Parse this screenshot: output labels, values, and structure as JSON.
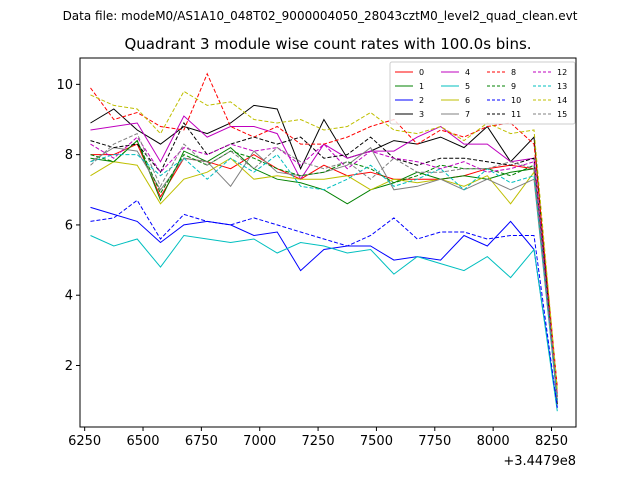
{
  "header": {
    "data_file_label": "Data file: modeM0/AS1A10_048T02_9000004050_28043cztM0_level2_quad_clean.evt"
  },
  "chart_data": {
    "type": "line",
    "title": "Quadrant 3 module wise count rates with 100.0s bins.",
    "xlabel": "",
    "ylabel": "",
    "x_offset_label": "+3.4479e8",
    "xlim": [
      6230,
      8355
    ],
    "ylim": [
      0.25,
      10.75
    ],
    "x_ticks": [
      6250,
      6500,
      6750,
      7000,
      7250,
      7500,
      7750,
      8000,
      8250
    ],
    "y_ticks": [
      2,
      4,
      6,
      8,
      10
    ],
    "grid": false,
    "legend": {
      "placement": "top-right",
      "columns": 4
    },
    "x": [
      6275,
      6375,
      6475,
      6575,
      6675,
      6775,
      6875,
      6975,
      7075,
      7175,
      7275,
      7375,
      7475,
      7575,
      7675,
      7775,
      7875,
      7975,
      8075,
      8175,
      8275
    ],
    "series": [
      {
        "name": "0",
        "color": "#ff0000",
        "dash": false,
        "values": [
          8.0,
          8.0,
          8.3,
          6.8,
          7.9,
          7.8,
          7.6,
          8.0,
          7.6,
          7.3,
          7.7,
          7.4,
          7.5,
          7.3,
          7.3,
          7.3,
          7.4,
          7.6,
          7.7,
          7.6,
          1.2
        ]
      },
      {
        "name": "1",
        "color": "#008000",
        "dash": false,
        "values": [
          7.9,
          7.8,
          8.4,
          6.7,
          8.1,
          7.8,
          8.2,
          7.6,
          7.3,
          7.2,
          7.0,
          6.6,
          7.0,
          7.2,
          7.5,
          7.3,
          7.4,
          7.3,
          7.5,
          7.6,
          1.0
        ]
      },
      {
        "name": "2",
        "color": "#0000ff",
        "dash": false,
        "values": [
          6.5,
          6.3,
          6.1,
          5.5,
          6.0,
          6.1,
          6.0,
          5.7,
          5.8,
          4.7,
          5.3,
          5.4,
          5.4,
          5.0,
          5.1,
          5.0,
          5.7,
          5.4,
          6.1,
          5.3,
          0.8
        ]
      },
      {
        "name": "3",
        "color": "#000000",
        "dash": false,
        "values": [
          8.9,
          9.3,
          8.7,
          8.3,
          8.8,
          8.6,
          8.9,
          9.4,
          9.3,
          7.6,
          9.0,
          7.9,
          8.1,
          8.4,
          8.3,
          8.5,
          8.2,
          8.8,
          7.8,
          8.5,
          0.9
        ]
      },
      {
        "name": "4",
        "color": "#bf00bf",
        "dash": false,
        "values": [
          8.7,
          8.8,
          8.9,
          7.8,
          9.1,
          8.5,
          8.8,
          8.8,
          8.6,
          7.3,
          8.3,
          7.9,
          8.1,
          8.1,
          8.5,
          8.8,
          8.3,
          8.3,
          7.8,
          7.9,
          1.0
        ]
      },
      {
        "name": "5",
        "color": "#00bfbf",
        "dash": false,
        "values": [
          5.7,
          5.4,
          5.6,
          4.8,
          5.7,
          5.6,
          5.5,
          5.6,
          5.2,
          5.5,
          5.4,
          5.2,
          5.3,
          4.6,
          5.1,
          4.9,
          4.7,
          5.1,
          4.5,
          5.3,
          0.7
        ]
      },
      {
        "name": "6",
        "color": "#bfbf00",
        "dash": false,
        "values": [
          7.4,
          7.8,
          7.7,
          6.6,
          7.3,
          7.5,
          7.9,
          7.3,
          7.4,
          7.3,
          7.3,
          7.4,
          7.0,
          7.3,
          7.2,
          7.3,
          7.1,
          7.4,
          6.6,
          7.5,
          1.1
        ]
      },
      {
        "name": "7",
        "color": "#808080",
        "dash": false,
        "values": [
          7.8,
          8.2,
          8.1,
          7.0,
          7.9,
          7.8,
          7.1,
          8.1,
          7.5,
          7.4,
          7.5,
          7.7,
          8.2,
          7.0,
          7.1,
          7.3,
          7.0,
          7.3,
          7.0,
          7.3,
          1.0
        ]
      },
      {
        "name": "8",
        "color": "#ff0000",
        "dash": true,
        "values": [
          9.9,
          9.0,
          9.2,
          8.8,
          8.7,
          10.3,
          8.8,
          8.5,
          8.8,
          8.3,
          8.3,
          8.5,
          8.8,
          9.0,
          8.3,
          8.7,
          8.5,
          8.8,
          8.9,
          8.3,
          1.4
        ]
      },
      {
        "name": "9",
        "color": "#008000",
        "dash": true,
        "values": [
          8.0,
          7.8,
          8.4,
          6.9,
          8.0,
          7.7,
          8.1,
          7.9,
          7.6,
          7.4,
          7.5,
          7.8,
          7.6,
          7.2,
          7.4,
          7.7,
          7.6,
          7.6,
          7.4,
          7.7,
          1.1
        ]
      },
      {
        "name": "10",
        "color": "#0000ff",
        "dash": true,
        "values": [
          6.1,
          6.2,
          6.7,
          5.6,
          6.3,
          6.1,
          6.0,
          6.2,
          6.0,
          5.8,
          5.6,
          5.4,
          5.7,
          6.2,
          5.6,
          5.8,
          5.8,
          5.6,
          5.7,
          5.7,
          0.8
        ]
      },
      {
        "name": "11",
        "color": "#000000",
        "dash": true,
        "values": [
          8.4,
          8.2,
          8.3,
          7.5,
          8.9,
          8.0,
          8.3,
          8.5,
          8.3,
          8.5,
          7.9,
          8.0,
          8.5,
          7.9,
          7.7,
          7.9,
          7.9,
          7.8,
          7.7,
          7.9,
          1.0
        ]
      },
      {
        "name": "12",
        "color": "#bf00bf",
        "dash": true,
        "values": [
          8.3,
          7.9,
          8.5,
          7.5,
          8.2,
          8.0,
          8.3,
          8.1,
          8.2,
          7.7,
          8.3,
          7.6,
          8.1,
          7.9,
          7.8,
          7.6,
          7.8,
          7.5,
          7.6,
          7.8,
          1.1
        ]
      },
      {
        "name": "13",
        "color": "#00bfbf",
        "dash": true,
        "values": [
          7.8,
          8.0,
          8.0,
          7.4,
          7.9,
          7.3,
          7.9,
          7.5,
          8.0,
          7.1,
          7.0,
          7.3,
          7.7,
          7.1,
          7.3,
          7.6,
          7.0,
          7.6,
          7.2,
          7.4,
          1.0
        ]
      },
      {
        "name": "14",
        "color": "#bfbf00",
        "dash": true,
        "values": [
          9.7,
          9.4,
          9.3,
          8.6,
          9.8,
          9.4,
          9.5,
          9.0,
          8.9,
          9.0,
          8.7,
          8.8,
          9.2,
          8.7,
          8.6,
          8.8,
          8.4,
          8.9,
          8.6,
          8.7,
          1.3
        ]
      },
      {
        "name": "15",
        "color": "#808080",
        "dash": true,
        "values": [
          7.7,
          8.3,
          8.6,
          7.1,
          8.3,
          7.7,
          8.1,
          7.6,
          8.2,
          7.8,
          7.6,
          7.8,
          7.3,
          7.9,
          7.5,
          7.5,
          7.6,
          7.6,
          7.8,
          7.6,
          1.0
        ]
      }
    ]
  }
}
